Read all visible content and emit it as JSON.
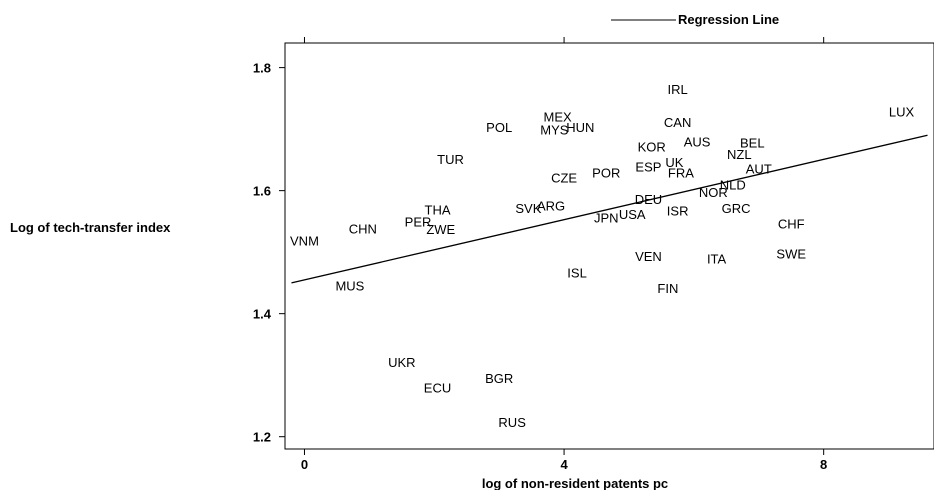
{
  "chart_data": {
    "type": "scatter",
    "title": "",
    "xlabel": "log of non-resident patents pc",
    "ylabel": "Log of tech-transfer index",
    "xlim": [
      -0.3,
      9.7
    ],
    "ylim": [
      1.18,
      1.84
    ],
    "xticks": [
      0,
      4,
      8
    ],
    "yticks": [
      1.2,
      1.4,
      1.6,
      1.8
    ],
    "xtick_labels": [
      "0",
      "4",
      "8"
    ],
    "ytick_labels": [
      "1.2",
      "1.4",
      "1.6",
      "1.8"
    ],
    "grid": false,
    "legend": {
      "placement": "top",
      "entries": [
        "Regression Line"
      ]
    },
    "regression_line": {
      "name": "Regression Line",
      "x": [
        -0.2,
        9.6
      ],
      "y": [
        1.45,
        1.69
      ]
    },
    "points": [
      {
        "label": "VNM",
        "x": 0.0,
        "y": 1.517
      },
      {
        "label": "CHN",
        "x": 0.9,
        "y": 1.537
      },
      {
        "label": "MUS",
        "x": 0.7,
        "y": 1.444
      },
      {
        "label": "PER",
        "x": 1.75,
        "y": 1.548
      },
      {
        "label": "THA",
        "x": 2.05,
        "y": 1.568
      },
      {
        "label": "ZWE",
        "x": 2.1,
        "y": 1.536
      },
      {
        "label": "TUR",
        "x": 2.25,
        "y": 1.65
      },
      {
        "label": "UKR",
        "x": 1.5,
        "y": 1.32
      },
      {
        "label": "ECU",
        "x": 2.05,
        "y": 1.278
      },
      {
        "label": "BGR",
        "x": 3.0,
        "y": 1.294
      },
      {
        "label": "RUS",
        "x": 3.2,
        "y": 1.222
      },
      {
        "label": "POL",
        "x": 3.0,
        "y": 1.702
      },
      {
        "label": "MEX",
        "x": 3.9,
        "y": 1.719
      },
      {
        "label": "MYS",
        "x": 3.85,
        "y": 1.698
      },
      {
        "label": "HUN",
        "x": 4.25,
        "y": 1.702
      },
      {
        "label": "SVK",
        "x": 3.45,
        "y": 1.57
      },
      {
        "label": "ARG",
        "x": 3.8,
        "y": 1.574
      },
      {
        "label": "CZE",
        "x": 4.0,
        "y": 1.62
      },
      {
        "label": "POR",
        "x": 4.65,
        "y": 1.628
      },
      {
        "label": "JPN",
        "x": 4.65,
        "y": 1.555
      },
      {
        "label": "USA",
        "x": 5.05,
        "y": 1.56
      },
      {
        "label": "ISL",
        "x": 4.2,
        "y": 1.465
      },
      {
        "label": "VEN",
        "x": 5.3,
        "y": 1.492
      },
      {
        "label": "FIN",
        "x": 5.6,
        "y": 1.44
      },
      {
        "label": "IRL",
        "x": 5.75,
        "y": 1.764
      },
      {
        "label": "CAN",
        "x": 5.75,
        "y": 1.71
      },
      {
        "label": "AUS",
        "x": 6.05,
        "y": 1.678
      },
      {
        "label": "KOR",
        "x": 5.35,
        "y": 1.67
      },
      {
        "label": "ESP",
        "x": 5.3,
        "y": 1.638
      },
      {
        "label": "UK",
        "x": 5.7,
        "y": 1.645
      },
      {
        "label": "FRA",
        "x": 5.8,
        "y": 1.628
      },
      {
        "label": "DEU",
        "x": 5.3,
        "y": 1.585
      },
      {
        "label": "ISR",
        "x": 5.75,
        "y": 1.566
      },
      {
        "label": "NOR",
        "x": 6.3,
        "y": 1.596
      },
      {
        "label": "NLD",
        "x": 6.6,
        "y": 1.608
      },
      {
        "label": "GRC",
        "x": 6.65,
        "y": 1.57
      },
      {
        "label": "BEL",
        "x": 6.9,
        "y": 1.677
      },
      {
        "label": "NZL",
        "x": 6.7,
        "y": 1.658
      },
      {
        "label": "AUT",
        "x": 7.0,
        "y": 1.634
      },
      {
        "label": "ITA",
        "x": 6.35,
        "y": 1.488
      },
      {
        "label": "SWE",
        "x": 7.5,
        "y": 1.496
      },
      {
        "label": "CHF",
        "x": 7.5,
        "y": 1.545
      },
      {
        "label": "LUX",
        "x": 9.2,
        "y": 1.727
      }
    ]
  }
}
